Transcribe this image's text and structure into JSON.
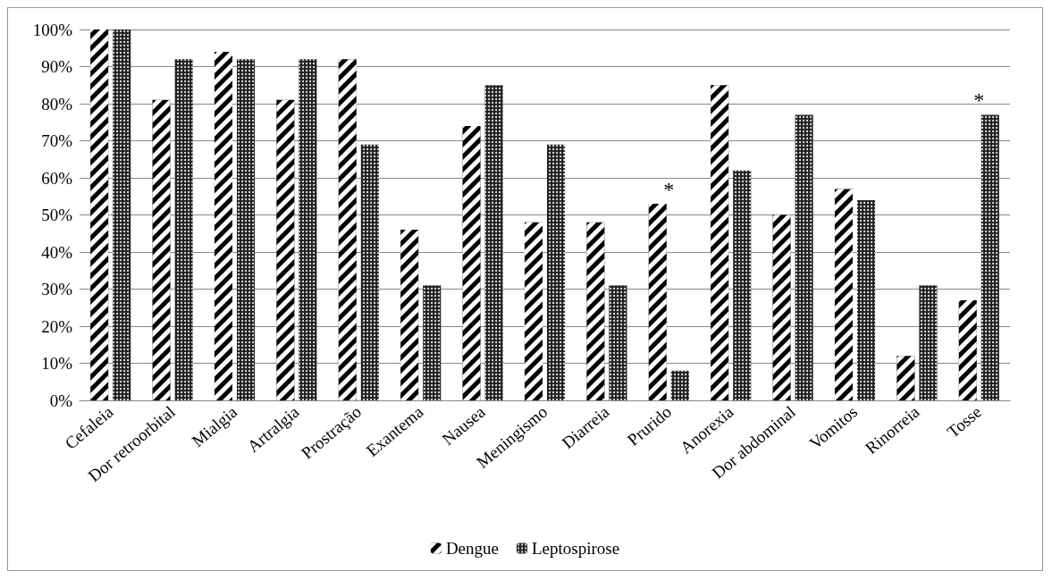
{
  "chart_data": {
    "type": "bar",
    "categories": [
      "Cefaleia",
      "Dor retroorbital",
      "Mialgia",
      "Artralgia",
      "Prostração",
      "Exantema",
      "Nausea",
      "Meningismo",
      "Diarreia",
      "Prurido",
      "Anorexia",
      "Dor abdominal",
      "Vomitos",
      "Rinorreia",
      "Tosse"
    ],
    "series": [
      {
        "name": "Dengue",
        "color": "#000000",
        "values": [
          100,
          81,
          94,
          81,
          92,
          46,
          74,
          48,
          48,
          53,
          85,
          50,
          57,
          12,
          27
        ]
      },
      {
        "name": "Leptospirose",
        "color": "#222222",
        "values": [
          100,
          92,
          92,
          92,
          69,
          31,
          85,
          69,
          31,
          8,
          62,
          77,
          54,
          31,
          77
        ]
      }
    ],
    "ylim": [
      0,
      100
    ],
    "yticks": [
      {
        "value": 0,
        "label": "0%"
      },
      {
        "value": 10,
        "label": "10%"
      },
      {
        "value": 20,
        "label": "20%"
      },
      {
        "value": 30,
        "label": "30%"
      },
      {
        "value": 40,
        "label": "40%"
      },
      {
        "value": 50,
        "label": "50%"
      },
      {
        "value": 60,
        "label": "60%"
      },
      {
        "value": 70,
        "label": "70%"
      },
      {
        "value": 80,
        "label": "80%"
      },
      {
        "value": 90,
        "label": "90%"
      },
      {
        "value": 100,
        "label": "100%"
      }
    ],
    "grid": "y",
    "legend": "bottom",
    "annotations": [
      {
        "text": "*",
        "x": "Prurido",
        "y": 53
      },
      {
        "text": "*",
        "x": "Tosse",
        "y": 77
      }
    ]
  }
}
